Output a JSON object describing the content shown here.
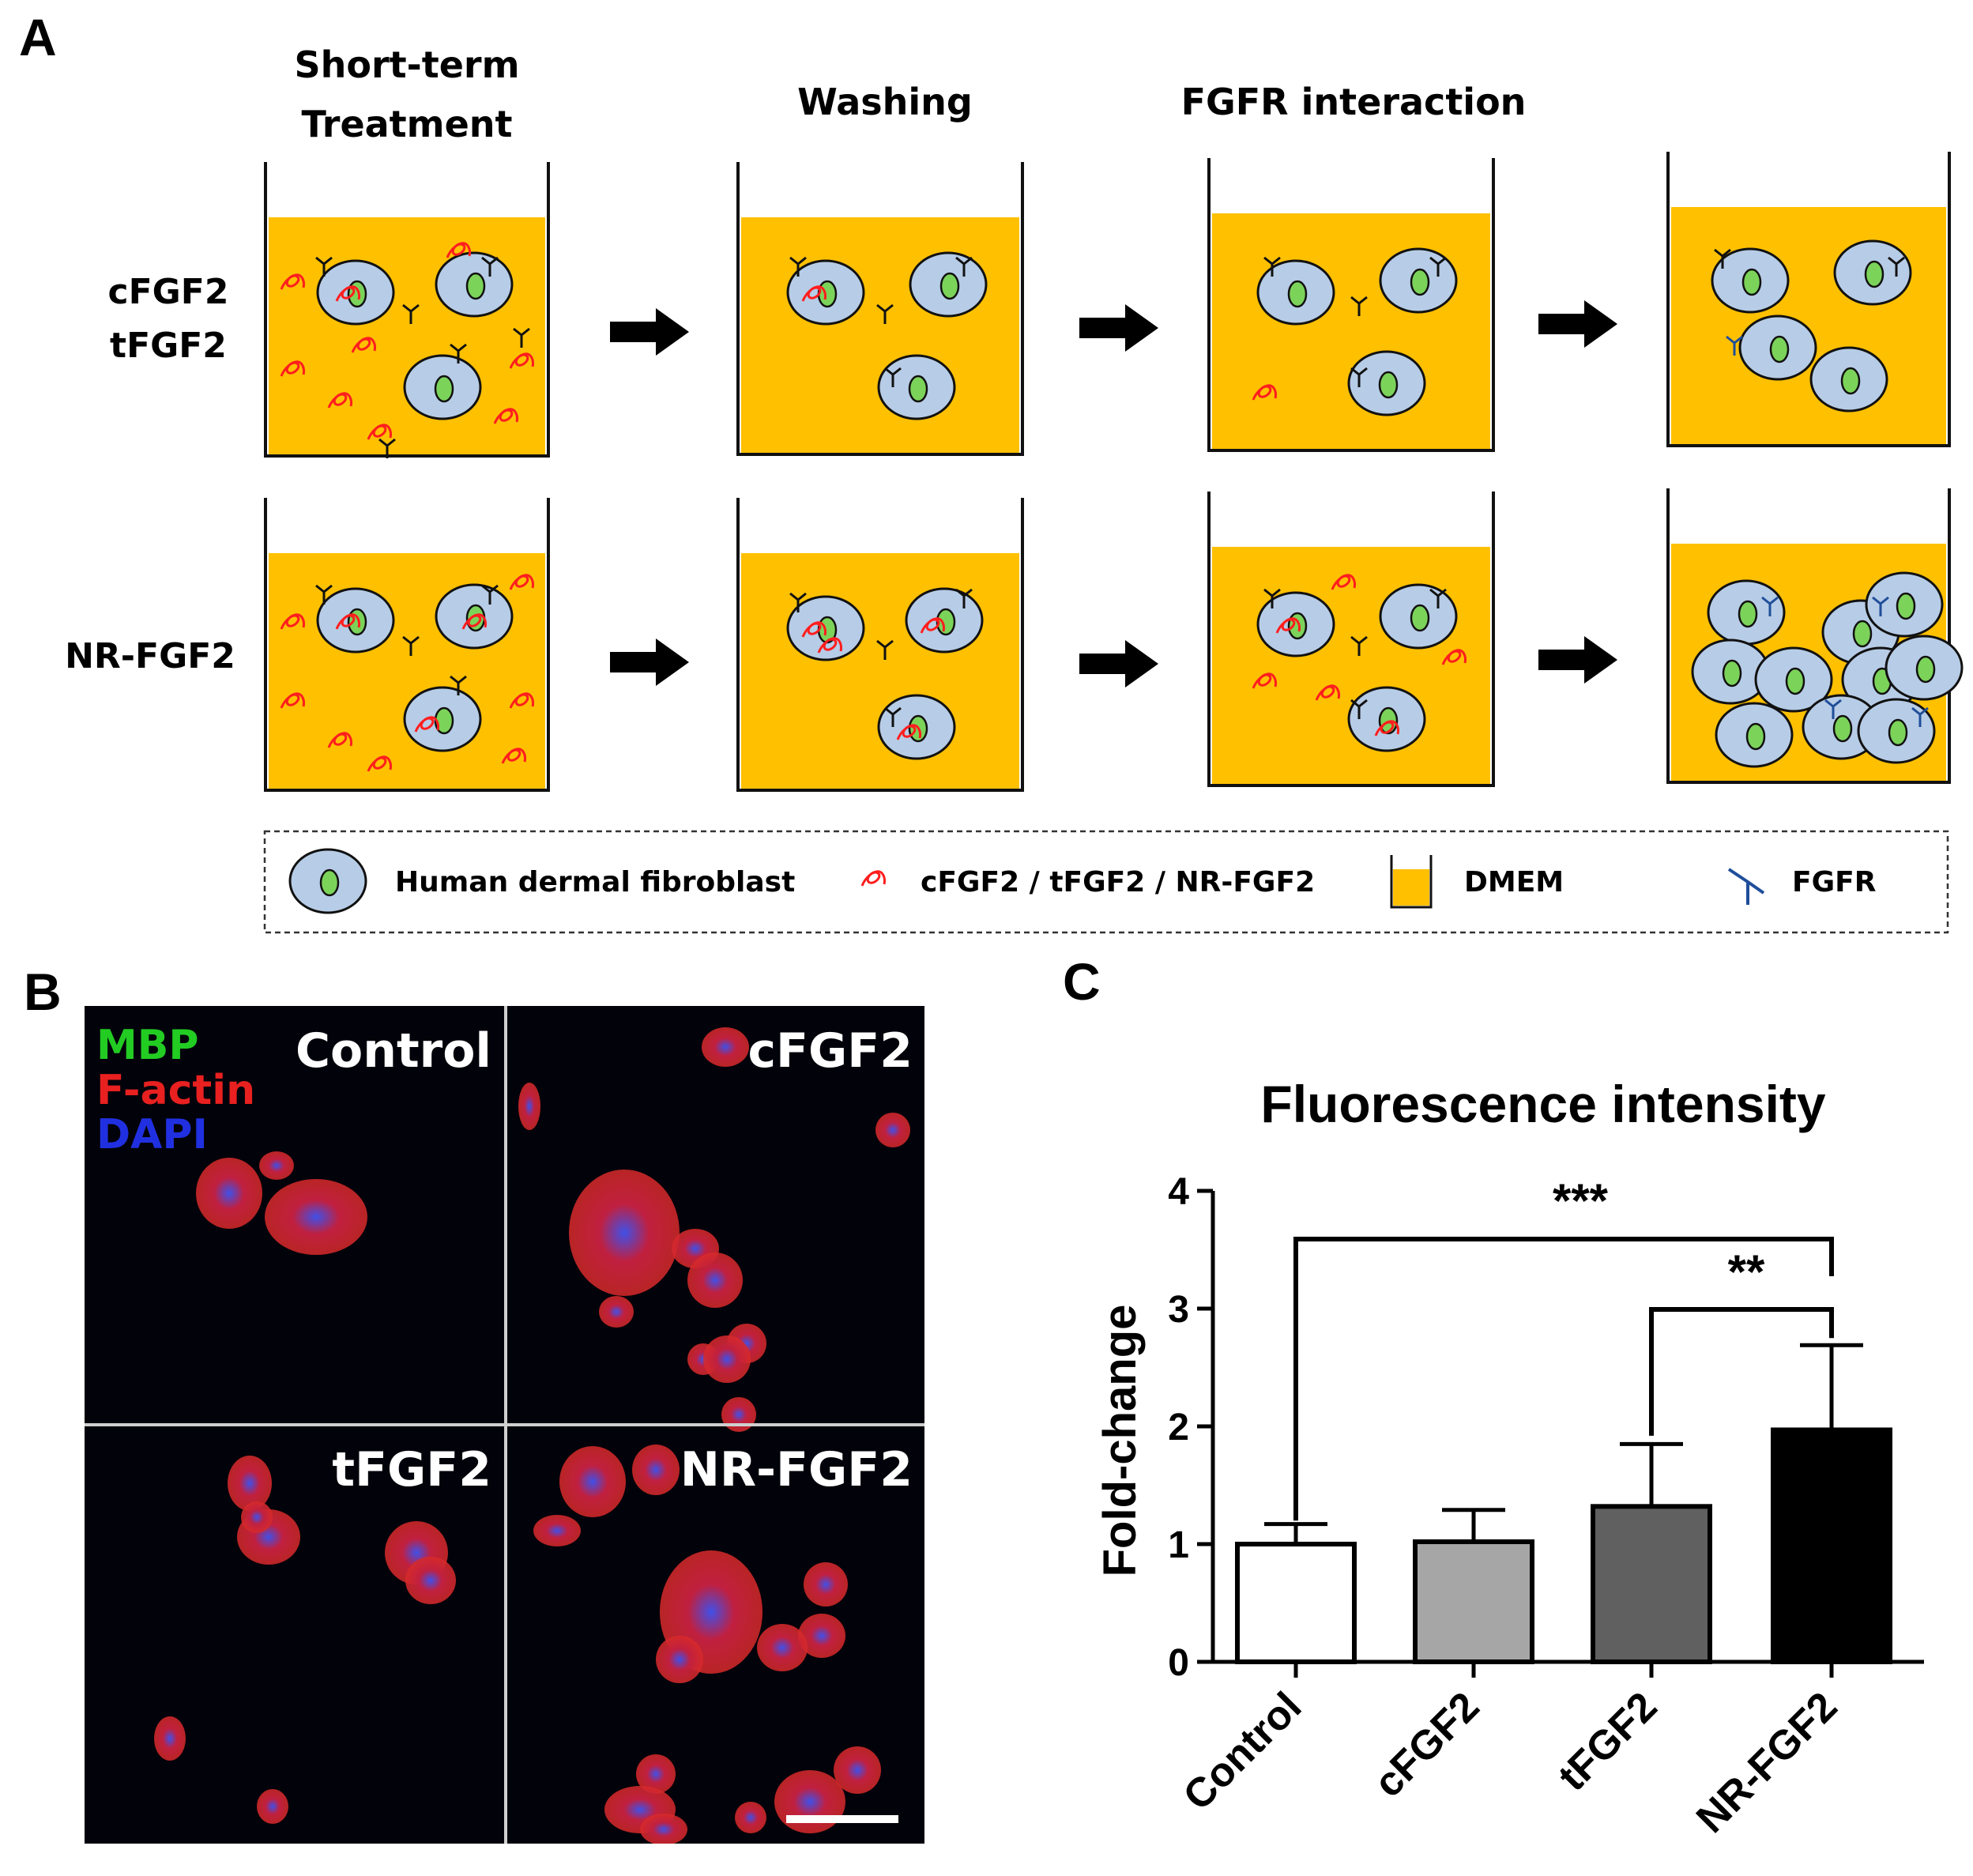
{
  "panels": {
    "a": "A",
    "b": "B",
    "c": "C"
  },
  "panel_a": {
    "steps": [
      "Short-term",
      "Treatment",
      "Washing",
      "FGFR interaction"
    ],
    "rows": {
      "top_line1": "cFGF2",
      "top_line2": "tFGF2",
      "bottom": "NR-FGF2"
    },
    "legend": {
      "cell": "Human dermal fibroblast",
      "protein": "cFGF2 / tFGF2 / NR-FGF2",
      "medium": "DMEM",
      "receptor": "FGFR"
    },
    "colors": {
      "medium": "#FFC000",
      "cell": "#B7CCE6",
      "nucleus": "#7CD35A",
      "protein": "#FF1E1E",
      "fgfr": "#1F4E9A"
    },
    "icons": [
      "well-icon",
      "fibroblast-cell-icon",
      "fgf2-protein-icon",
      "fgfr-receptor-icon",
      "arrow-right-icon"
    ]
  },
  "panel_b": {
    "stains": [
      {
        "label": "MBP",
        "color": "#22CC22"
      },
      {
        "label": "F-actin",
        "color": "#E82020"
      },
      {
        "label": "DAPI",
        "color": "#2030E0"
      }
    ],
    "images": [
      "Control",
      "cFGF2",
      "tFGF2",
      "NR-FGF2"
    ]
  },
  "chart_data": {
    "type": "bar",
    "title": "Fluorescence intensity",
    "ylabel": "Fold-change",
    "xlabel": "",
    "categories": [
      "Control",
      "cFGF2",
      "tFGF2",
      "NR-FGF2"
    ],
    "values": [
      1.0,
      1.02,
      1.32,
      1.97
    ],
    "errors": [
      0.17,
      0.27,
      0.53,
      0.72
    ],
    "bar_colors": [
      "#FFFFFF",
      "#A6A6A6",
      "#606060",
      "#000000"
    ],
    "ylim": [
      0,
      4
    ],
    "yticks": [
      0,
      1,
      2,
      3,
      4
    ],
    "significance": [
      {
        "from": "Control",
        "to": "NR-FGF2",
        "label": "***"
      },
      {
        "from": "tFGF2",
        "to": "NR-FGF2",
        "label": "**"
      }
    ],
    "grid": false,
    "legend": "none"
  }
}
